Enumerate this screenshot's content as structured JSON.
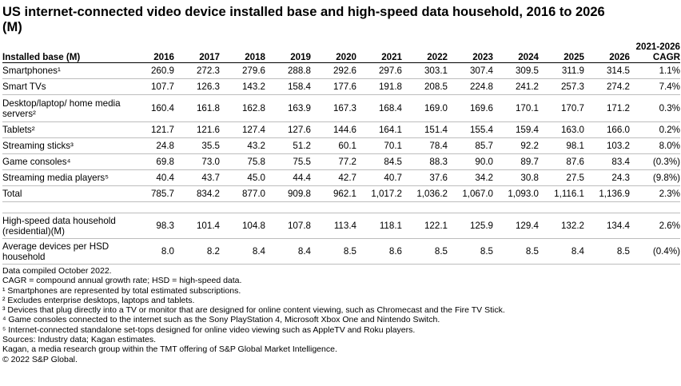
{
  "title": "US internet-connected video device installed base and high-speed data household, 2016 to 2026 (M)",
  "chart_data": {
    "type": "table",
    "header": {
      "label": "Installed base (M)",
      "years": [
        "2016",
        "2017",
        "2018",
        "2019",
        "2020",
        "2021",
        "2022",
        "2023",
        "2024",
        "2025",
        "2026"
      ],
      "cagr_line1": "2021-2026",
      "cagr_line2": "CAGR"
    },
    "rows": [
      {
        "label": "Smartphones¹",
        "values": [
          "260.9",
          "272.3",
          "279.6",
          "288.8",
          "292.6",
          "297.6",
          "303.1",
          "307.4",
          "309.5",
          "311.9",
          "314.5"
        ],
        "cagr": "1.1%"
      },
      {
        "label": "Smart TVs",
        "values": [
          "107.7",
          "126.3",
          "143.2",
          "158.4",
          "177.6",
          "191.8",
          "208.5",
          "224.8",
          "241.2",
          "257.3",
          "274.2"
        ],
        "cagr": "7.4%"
      },
      {
        "label": "Desktop/laptop/ home media servers²",
        "values": [
          "160.4",
          "161.8",
          "162.8",
          "163.9",
          "167.3",
          "168.4",
          "169.0",
          "169.6",
          "170.1",
          "170.7",
          "171.2"
        ],
        "cagr": "0.3%"
      },
      {
        "label": "Tablets²",
        "values": [
          "121.7",
          "121.6",
          "127.4",
          "127.6",
          "144.6",
          "164.1",
          "151.4",
          "155.4",
          "159.4",
          "163.0",
          "166.0"
        ],
        "cagr": "0.2%"
      },
      {
        "label": "Streaming sticks³",
        "values": [
          "24.8",
          "35.5",
          "43.2",
          "51.2",
          "60.1",
          "70.1",
          "78.4",
          "85.7",
          "92.2",
          "98.1",
          "103.2"
        ],
        "cagr": "8.0%"
      },
      {
        "label": "Game consoles⁴",
        "values": [
          "69.8",
          "73.0",
          "75.8",
          "75.5",
          "77.2",
          "84.5",
          "88.3",
          "90.0",
          "89.7",
          "87.6",
          "83.4"
        ],
        "cagr": "(0.3%)"
      },
      {
        "label": "Streaming media players⁵",
        "values": [
          "40.4",
          "43.7",
          "45.0",
          "44.4",
          "42.7",
          "40.7",
          "37.6",
          "34.2",
          "30.8",
          "27.5",
          "24.3"
        ],
        "cagr": "(9.8%)"
      },
      {
        "label": "Total",
        "values": [
          "785.7",
          "834.2",
          "877.0",
          "909.8",
          "962.1",
          "1,017.2",
          "1,036.2",
          "1,067.0",
          "1,093.0",
          "1,116.1",
          "1,136.9"
        ],
        "cagr": "2.3%"
      }
    ],
    "hsd_rows": [
      {
        "label": "High-speed data household (residential)(M)",
        "values": [
          "98.3",
          "101.4",
          "104.8",
          "107.8",
          "113.4",
          "118.1",
          "122.1",
          "125.9",
          "129.4",
          "132.2",
          "134.4"
        ],
        "cagr": "2.6%"
      },
      {
        "label": "Average devices per HSD household",
        "values": [
          "8.0",
          "8.2",
          "8.4",
          "8.4",
          "8.5",
          "8.6",
          "8.5",
          "8.5",
          "8.5",
          "8.4",
          "8.5"
        ],
        "cagr": "(0.4%)"
      }
    ]
  },
  "notes": [
    "Data compiled October 2022.",
    "CAGR = compound annual growth rate; HSD = high-speed data.",
    "¹ Smartphones are represented by total estimated subscriptions.",
    "² Excludes enterprise desktops, laptops and tablets.",
    "³ Devices that plug directly into a TV or monitor that are designed for online content viewing, such as Chromecast and the Fire TV Stick.",
    "⁴ Game consoles connected to the internet such as the Sony PlayStation 4, Microsoft Xbox One and Nintendo Switch.",
    "⁵ Internet-connected standalone set-tops designed for online video viewing such as AppleTV and Roku players.",
    "Sources: Industry data; Kagan estimates.",
    "Kagan, a media research group within the TMT offering of S&P Global Market Intelligence.",
    "© 2022 S&P Global."
  ]
}
